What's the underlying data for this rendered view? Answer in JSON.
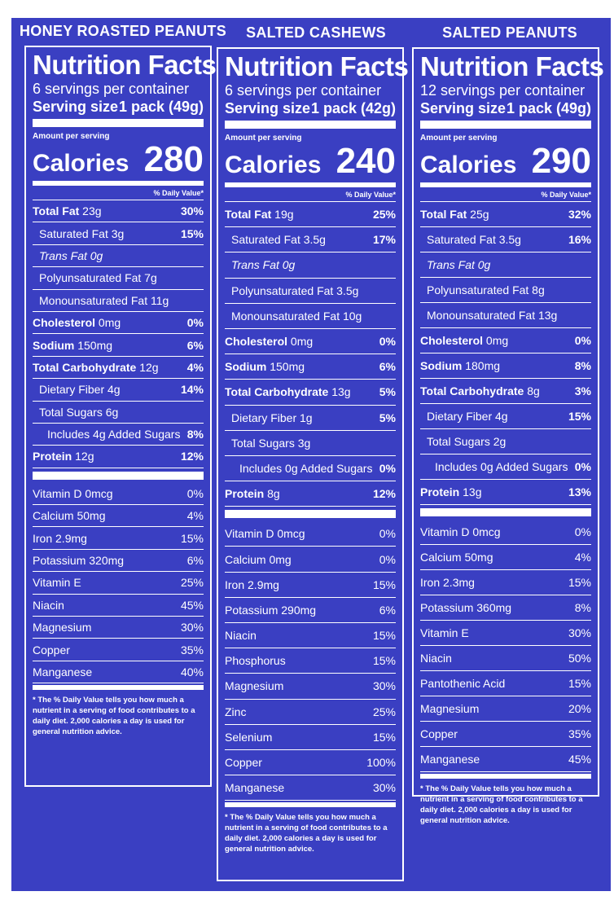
{
  "labels": [
    {
      "product": "HONEY ROASTED PEANUTS",
      "title": "Nutrition Facts",
      "servings": "6 servings per container",
      "serving_size_label": "Serving size",
      "serving_size_value": "1 pack (49g)",
      "amount_per_serving": "Amount per serving",
      "calories_label": "Calories",
      "calories": "280",
      "dv_header": "% Daily Value*",
      "nutrients": [
        {
          "bold": "Total Fat",
          "rest": " 23g",
          "dv": "30%"
        },
        {
          "bold": "",
          "rest": "Saturated Fat 3g",
          "dv": "15%"
        },
        {
          "bold": "",
          "rest": "Trans Fat 0g",
          "dv": ""
        },
        {
          "bold": "",
          "rest": "Polyunsaturated Fat 7g",
          "dv": ""
        },
        {
          "bold": "",
          "rest": "Monounsaturated Fat 11g",
          "dv": ""
        },
        {
          "bold": "Cholesterol",
          "rest": " 0mg",
          "dv": "0%"
        },
        {
          "bold": "Sodium",
          "rest": " 150mg",
          "dv": "6%"
        },
        {
          "bold": "Total Carbohydrate",
          "rest": " 12g",
          "dv": "4%"
        },
        {
          "bold": "",
          "rest": "Dietary Fiber 4g",
          "dv": "14%"
        },
        {
          "bold": "",
          "rest": "Total Sugars 6g",
          "dv": ""
        },
        {
          "bold": "",
          "rest": "Includes 4g Added Sugars",
          "dv": "8%"
        },
        {
          "bold": "Protein",
          "rest": " 12g",
          "dv": "12%"
        }
      ],
      "vitamins": [
        {
          "name": "Vitamin D 0mcg",
          "dv": "0%"
        },
        {
          "name": "Calcium 50mg",
          "dv": "4%"
        },
        {
          "name": "Iron 2.9mg",
          "dv": "15%"
        },
        {
          "name": "Potassium 320mg",
          "dv": "6%"
        },
        {
          "name": "Vitamin E",
          "dv": "25%"
        },
        {
          "name": "Niacin",
          "dv": "45%"
        },
        {
          "name": "Magnesium",
          "dv": "30%"
        },
        {
          "name": "Copper",
          "dv": "35%"
        },
        {
          "name": "Manganese",
          "dv": "40%"
        }
      ],
      "footnote": "* The % Daily Value tells you how much a nutrient in a serving of food contributes to a daily diet. 2,000 calories a day is used for general nutrition advice."
    },
    {
      "product": "SALTED CASHEWS",
      "title": "Nutrition Facts",
      "servings": "6 servings per container",
      "serving_size_label": "Serving size",
      "serving_size_value": "1 pack (42g)",
      "amount_per_serving": "Amount per serving",
      "calories_label": "Calories",
      "calories": "240",
      "dv_header": "% Daily Value*",
      "nutrients": [
        {
          "bold": "Total Fat",
          "rest": " 19g",
          "dv": "25%"
        },
        {
          "bold": "",
          "rest": "Saturated Fat 3.5g",
          "dv": "17%"
        },
        {
          "bold": "",
          "rest": "Trans Fat 0g",
          "dv": ""
        },
        {
          "bold": "",
          "rest": "Polyunsaturated Fat 3.5g",
          "dv": ""
        },
        {
          "bold": "",
          "rest": "Monounsaturated Fat 10g",
          "dv": ""
        },
        {
          "bold": "Cholesterol",
          "rest": " 0mg",
          "dv": "0%"
        },
        {
          "bold": "Sodium",
          "rest": " 150mg",
          "dv": "6%"
        },
        {
          "bold": "Total Carbohydrate",
          "rest": " 13g",
          "dv": "5%"
        },
        {
          "bold": "",
          "rest": "Dietary Fiber 1g",
          "dv": "5%"
        },
        {
          "bold": "",
          "rest": "Total Sugars 3g",
          "dv": ""
        },
        {
          "bold": "",
          "rest": "Includes 0g Added Sugars",
          "dv": "0%"
        },
        {
          "bold": "Protein",
          "rest": " 8g",
          "dv": "12%"
        }
      ],
      "vitamins": [
        {
          "name": "Vitamin D 0mcg",
          "dv": "0%"
        },
        {
          "name": "Calcium 0mg",
          "dv": "0%"
        },
        {
          "name": "Iron 2.9mg",
          "dv": "15%"
        },
        {
          "name": "Potassium 290mg",
          "dv": "6%"
        },
        {
          "name": "Niacin",
          "dv": "15%"
        },
        {
          "name": "Phosphorus",
          "dv": "15%"
        },
        {
          "name": "Magnesium",
          "dv": "30%"
        },
        {
          "name": "Zinc",
          "dv": "25%"
        },
        {
          "name": "Selenium",
          "dv": "15%"
        },
        {
          "name": "Copper",
          "dv": "100%"
        },
        {
          "name": "Manganese",
          "dv": "30%"
        }
      ],
      "footnote": "* The % Daily Value tells you how much a nutrient in a serving of food contributes to a daily diet. 2,000 calories a day is used for general nutrition advice."
    },
    {
      "product": "SALTED PEANUTS",
      "title": "Nutrition Facts",
      "servings": "12 servings per container",
      "serving_size_label": "Serving size",
      "serving_size_value": "1 pack (49g)",
      "amount_per_serving": "Amount per serving",
      "calories_label": "Calories",
      "calories": "290",
      "dv_header": "% Daily Value*",
      "nutrients": [
        {
          "bold": "Total Fat",
          "rest": " 25g",
          "dv": "32%"
        },
        {
          "bold": "",
          "rest": "Saturated Fat 3.5g",
          "dv": "16%"
        },
        {
          "bold": "",
          "rest": "Trans Fat 0g",
          "dv": ""
        },
        {
          "bold": "",
          "rest": "Polyunsaturated Fat 8g",
          "dv": ""
        },
        {
          "bold": "",
          "rest": "Monounsaturated Fat 13g",
          "dv": ""
        },
        {
          "bold": "Cholesterol",
          "rest": " 0mg",
          "dv": "0%"
        },
        {
          "bold": "Sodium",
          "rest": " 180mg",
          "dv": "8%"
        },
        {
          "bold": "Total Carbohydrate",
          "rest": " 8g",
          "dv": "3%"
        },
        {
          "bold": "",
          "rest": "Dietary Fiber 4g",
          "dv": "15%"
        },
        {
          "bold": "",
          "rest": "Total Sugars 2g",
          "dv": ""
        },
        {
          "bold": "",
          "rest": "Includes 0g Added Sugars",
          "dv": "0%"
        },
        {
          "bold": "Protein",
          "rest": " 13g",
          "dv": "13%"
        }
      ],
      "vitamins": [
        {
          "name": "Vitamin D 0mcg",
          "dv": "0%"
        },
        {
          "name": "Calcium 50mg",
          "dv": "4%"
        },
        {
          "name": "Iron 2.3mg",
          "dv": "15%"
        },
        {
          "name": "Potassium 360mg",
          "dv": "8%"
        },
        {
          "name": "Vitamin E",
          "dv": "30%"
        },
        {
          "name": "Niacin",
          "dv": "50%"
        },
        {
          "name": "Pantothenic Acid",
          "dv": "15%"
        },
        {
          "name": "Magnesium",
          "dv": "20%"
        },
        {
          "name": "Copper",
          "dv": "35%"
        },
        {
          "name": "Manganese",
          "dv": "45%"
        }
      ],
      "footnote": "* The % Daily Value tells you how much a nutrient in a serving of food contributes to a daily diet. 2,000 calories a day is used for general nutrition advice."
    }
  ]
}
